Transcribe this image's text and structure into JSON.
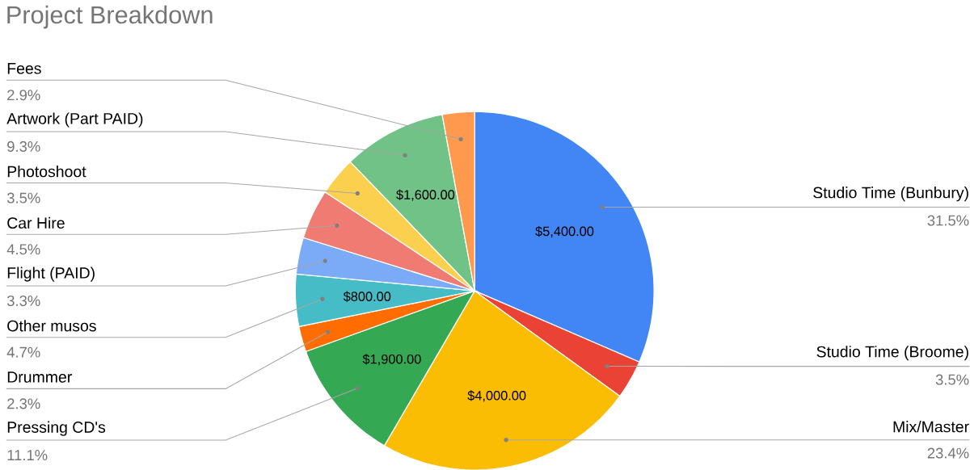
{
  "chart_data": {
    "type": "pie",
    "title": "Project Breakdown",
    "categories": [
      "Studio Time (Bunbury)",
      "Studio Time (Broome)",
      "Mix/Master",
      "Pressing CD's",
      "Drummer",
      "Other musos",
      "Flight (PAID)",
      "Car Hire",
      "Photoshoot",
      "Artwork (Part PAID)",
      "Fees"
    ],
    "values": [
      31.5,
      3.5,
      23.4,
      11.1,
      2.3,
      4.7,
      3.3,
      4.5,
      3.5,
      9.3,
      2.9
    ],
    "value_labels": [
      "31.5%",
      "3.5%",
      "23.4%",
      "11.1%",
      "2.3%",
      "4.7%",
      "3.3%",
      "4.5%",
      "3.5%",
      "9.3%",
      "2.9%"
    ],
    "colors": [
      "#4285f4",
      "#ea4335",
      "#fbbc04",
      "#34a853",
      "#ff6d01",
      "#46bdc6",
      "#7baaf7",
      "#f07b72",
      "#fcd04f",
      "#71c287",
      "#ff994d"
    ],
    "annotations": [
      {
        "text": "$5,400.00",
        "x": "Studio Time (Bunbury)"
      },
      {
        "text": "$4,000.00",
        "x": "Mix/Master"
      },
      {
        "text": "$1,900.00",
        "x": "Pressing CD's"
      },
      {
        "text": "$800.00",
        "x": "Other musos"
      },
      {
        "text": "$1,600.00",
        "x": "Artwork (Part PAID)"
      }
    ]
  }
}
